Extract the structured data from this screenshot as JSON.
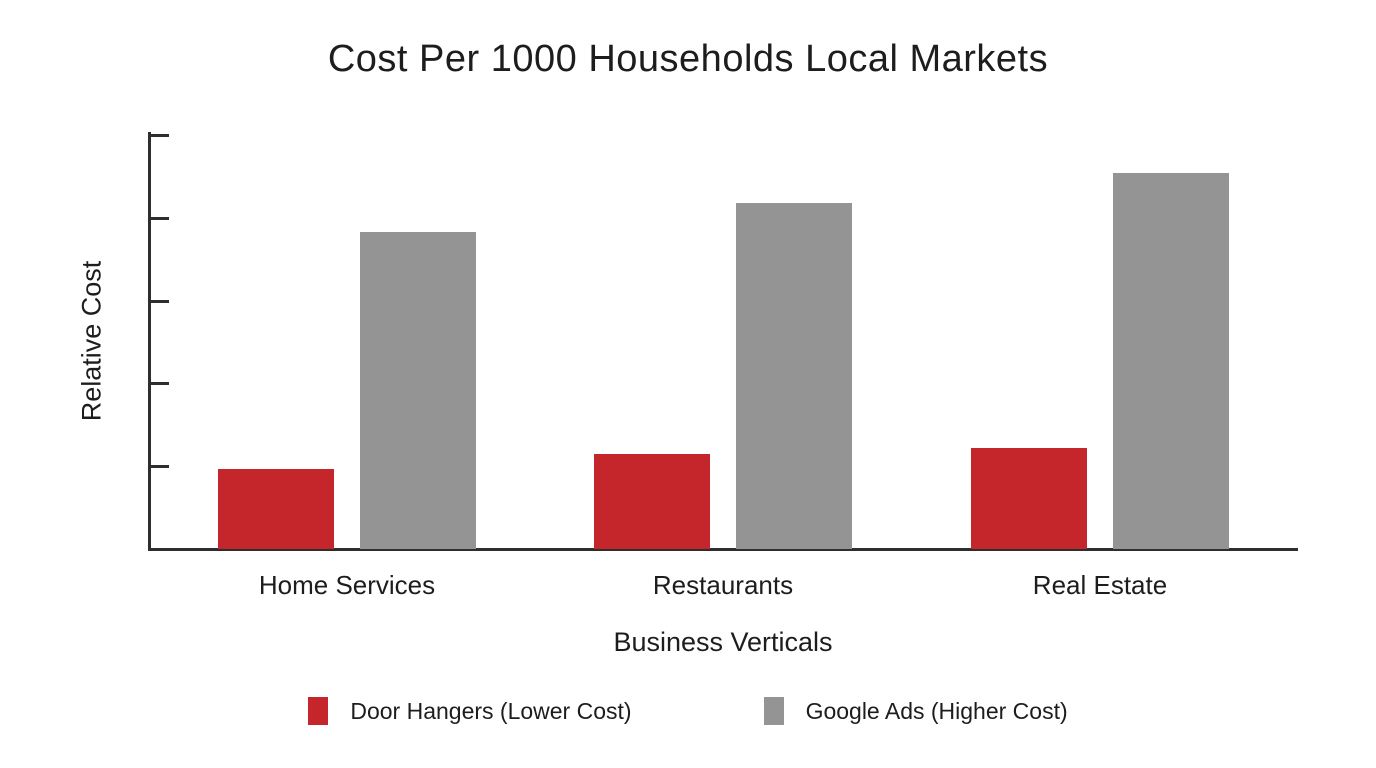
{
  "chart_data": {
    "type": "bar",
    "title": "Cost Per 1000 Households Local Markets",
    "categories": [
      "Home Services",
      "Restaurants",
      "Real Estate"
    ],
    "series": [
      {
        "name": "Door Hangers (Lower Cost)",
        "color": "#c5262b",
        "values": [
          0.97,
          1.15,
          1.22
        ]
      },
      {
        "name": "Google Ads (Higher Cost)",
        "color": "#949494",
        "values": [
          3.83,
          4.18,
          4.54
        ]
      }
    ],
    "xlabel": "Business Verticals",
    "ylabel": "Relative Cost",
    "ylim": [
      0,
      5
    ],
    "y_ticks": [
      1,
      2,
      3,
      4,
      5
    ],
    "y_tick_labels_shown": false,
    "grid": false,
    "legend_position": "bottom",
    "axis_color": "#2e2e2e",
    "background_color": "#ffffff",
    "text_color": "#1d1d1d"
  }
}
